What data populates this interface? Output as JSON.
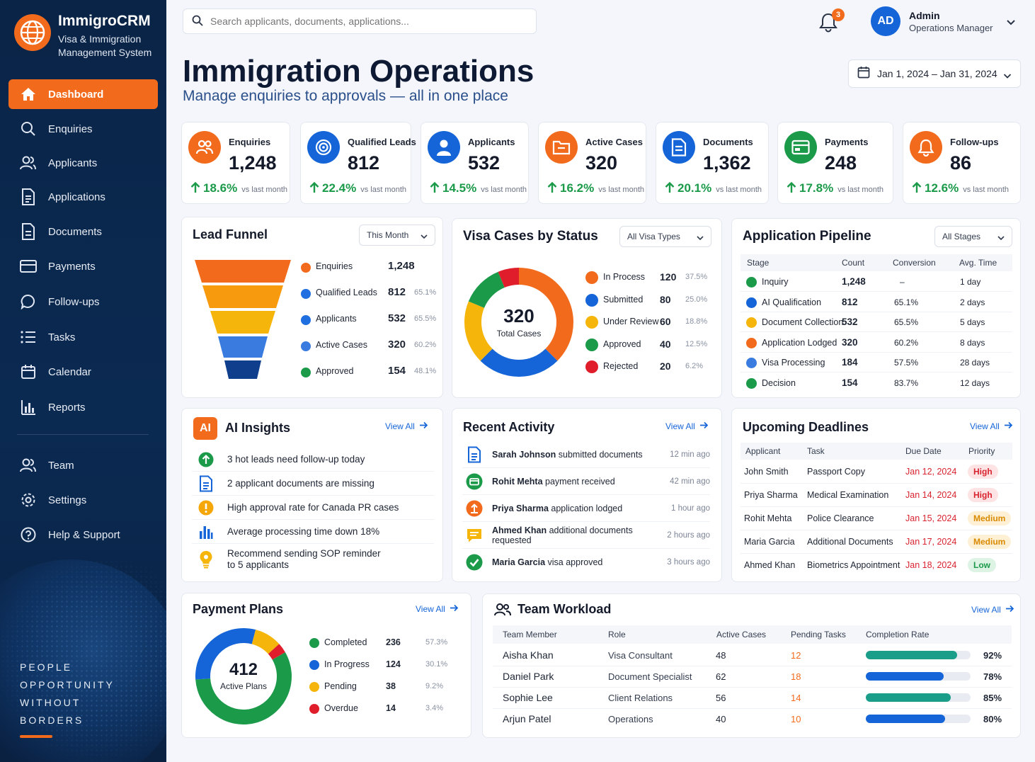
{
  "app": {
    "name": "ImmigroCRM",
    "subtitle": "Visa & Immigration Management System"
  },
  "sidebar": {
    "items": [
      {
        "label": "Dashboard",
        "icon": "home-icon"
      },
      {
        "label": "Enquiries",
        "icon": "search-icon"
      },
      {
        "label": "Applicants",
        "icon": "users-icon"
      },
      {
        "label": "Applications",
        "icon": "document-icon"
      },
      {
        "label": "Documents",
        "icon": "file-icon"
      },
      {
        "label": "Payments",
        "icon": "card-icon"
      },
      {
        "label": "Follow-ups",
        "icon": "chat-icon"
      },
      {
        "label": "Tasks",
        "icon": "list-icon"
      },
      {
        "label": "Calendar",
        "icon": "calendar-icon"
      },
      {
        "label": "Reports",
        "icon": "bar-chart-icon"
      }
    ],
    "bottom_items": [
      {
        "label": "Team",
        "icon": "team-icon"
      },
      {
        "label": "Settings",
        "icon": "gear-icon"
      },
      {
        "label": "Help & Support",
        "icon": "help-icon"
      }
    ],
    "tagline": [
      "PEOPLE",
      "OPPORTUNITY",
      "WITHOUT",
      "BORDERS"
    ]
  },
  "header": {
    "search_placeholder": "Search applicants, documents, applications...",
    "notification_count": "3",
    "user_initials": "AD",
    "user_name": "Admin",
    "user_role": "Operations Manager",
    "date_range": "Jan 1, 2024 – Jan 31, 2024"
  },
  "page": {
    "title": "Immigration Operations",
    "subtitle": "Manage enquiries to approvals — all in one place"
  },
  "kpis": [
    {
      "label": "Enquiries",
      "value": "1,248",
      "change": "18.6%",
      "note": "vs last month",
      "color": "#f26b1d"
    },
    {
      "label": "Qualified Leads",
      "value": "812",
      "change": "22.4%",
      "note": "vs last month",
      "color": "#1565d8"
    },
    {
      "label": "Applicants",
      "value": "532",
      "change": "14.5%",
      "note": "vs last month",
      "color": "#1565d8"
    },
    {
      "label": "Active Cases",
      "value": "320",
      "change": "16.2%",
      "note": "vs last month",
      "color": "#f26b1d"
    },
    {
      "label": "Documents",
      "value": "1,362",
      "change": "20.1%",
      "note": "vs last month",
      "color": "#1565d8"
    },
    {
      "label": "Payments",
      "value": "248",
      "change": "17.8%",
      "note": "vs last month",
      "color": "#1b9a4a"
    },
    {
      "label": "Follow-ups",
      "value": "86",
      "change": "12.6%",
      "note": "vs last month",
      "color": "#f26b1d"
    }
  ],
  "lead_funnel": {
    "title": "Lead Funnel",
    "filter": "This Month",
    "rows": [
      {
        "label": "Enquiries",
        "value": "1,248",
        "pct": "",
        "color": "#f26b1d"
      },
      {
        "label": "Qualified Leads",
        "value": "812",
        "pct": "65.1%",
        "color": "#1f6fe0"
      },
      {
        "label": "Applicants",
        "value": "532",
        "pct": "65.5%",
        "color": "#1f6fe0"
      },
      {
        "label": "Active Cases",
        "value": "320",
        "pct": "60.2%",
        "color": "#3a7be0"
      },
      {
        "label": "Approved",
        "value": "154",
        "pct": "48.1%",
        "color": "#1b9a4a"
      }
    ]
  },
  "visa_status": {
    "title": "Visa Cases by Status",
    "filter": "All Visa Types",
    "total": "320",
    "total_label": "Total Cases",
    "rows": [
      {
        "label": "In Process",
        "value": 120,
        "pct": "37.5%",
        "color": "#f26b1d"
      },
      {
        "label": "Submitted",
        "value": 80,
        "pct": "25.0%",
        "color": "#1565d8"
      },
      {
        "label": "Under Review",
        "value": 60,
        "pct": "18.8%",
        "color": "#f5b50a"
      },
      {
        "label": "Approved",
        "value": 40,
        "pct": "12.5%",
        "color": "#1b9a4a"
      },
      {
        "label": "Rejected",
        "value": 20,
        "pct": "6.2%",
        "color": "#e01e2b"
      }
    ]
  },
  "pipeline": {
    "title": "Application Pipeline",
    "filter": "All Stages",
    "headers": [
      "Stage",
      "Count",
      "Conversion",
      "Avg. Time"
    ],
    "rows": [
      {
        "stage": "Inquiry",
        "count": "1,248",
        "conv": "–",
        "time": "1 day",
        "color": "#1b9a4a"
      },
      {
        "stage": "AI Qualification",
        "count": "812",
        "conv": "65.1%",
        "time": "2 days",
        "color": "#1565d8"
      },
      {
        "stage": "Document Collection",
        "count": "532",
        "conv": "65.5%",
        "time": "5 days",
        "color": "#f5b50a"
      },
      {
        "stage": "Application Lodged",
        "count": "320",
        "conv": "60.2%",
        "time": "8 days",
        "color": "#f26b1d"
      },
      {
        "stage": "Visa Processing",
        "count": "184",
        "conv": "57.5%",
        "time": "28 days",
        "color": "#3a7be0"
      },
      {
        "stage": "Decision",
        "count": "154",
        "conv": "83.7%",
        "time": "12 days",
        "color": "#1b9a4a"
      }
    ]
  },
  "ai_insights": {
    "badge": "AI",
    "title": "AI Insights",
    "view_all": "View All",
    "items": [
      {
        "text": "3 hot leads need follow-up today",
        "icon": "arrow-up-icon"
      },
      {
        "text": "2 applicant documents are missing",
        "icon": "document-icon"
      },
      {
        "text": "High approval rate for Canada PR cases",
        "icon": "warning-icon"
      },
      {
        "text": "Average processing time down 18%",
        "icon": "bar-chart-icon"
      },
      {
        "text": "Recommend sending SOP reminder",
        "text2": "to 5 applicants",
        "icon": "lightbulb-icon"
      }
    ]
  },
  "recent_activity": {
    "title": "Recent Activity",
    "view_all": "View All",
    "items": [
      {
        "name": "Sarah Johnson",
        "action": "submitted documents",
        "time": "12 min ago",
        "icon": "document-icon"
      },
      {
        "name": "Rohit Mehta",
        "action": "payment received",
        "time": "42 min ago",
        "icon": "payment-icon"
      },
      {
        "name": "Priya Sharma",
        "action": "application lodged",
        "time": "1 hour ago",
        "icon": "upload-icon"
      },
      {
        "name": "Ahmed Khan",
        "action": "additional documents requested",
        "time": "2 hours ago",
        "icon": "message-icon"
      },
      {
        "name": "Maria Garcia",
        "action": "visa approved",
        "time": "3 hours ago",
        "icon": "check-icon"
      }
    ]
  },
  "deadlines": {
    "title": "Upcoming Deadlines",
    "view_all": "View All",
    "headers": [
      "Applicant",
      "Task",
      "Due Date",
      "Priority"
    ],
    "rows": [
      {
        "applicant": "John Smith",
        "task": "Passport Copy",
        "date": "Jan 12, 2024",
        "priority": "High"
      },
      {
        "applicant": "Priya Sharma",
        "task": "Medical Examination",
        "date": "Jan 14, 2024",
        "priority": "High"
      },
      {
        "applicant": "Rohit Mehta",
        "task": "Police Clearance",
        "date": "Jan 15, 2024",
        "priority": "Medium"
      },
      {
        "applicant": "Maria Garcia",
        "task": "Additional Documents",
        "date": "Jan 17, 2024",
        "priority": "Medium"
      },
      {
        "applicant": "Ahmed Khan",
        "task": "Biometrics Appointment",
        "date": "Jan 18, 2024",
        "priority": "Low"
      }
    ]
  },
  "payment_plans": {
    "title": "Payment Plans",
    "view_all": "View All",
    "total": "412",
    "total_label": "Active Plans",
    "rows": [
      {
        "label": "Completed",
        "value": 236,
        "pct": "57.3%",
        "color": "#1b9a4a"
      },
      {
        "label": "In Progress",
        "value": 124,
        "pct": "30.1%",
        "color": "#1565d8"
      },
      {
        "label": "Pending",
        "value": 38,
        "pct": "9.2%",
        "color": "#f5b50a"
      },
      {
        "label": "Overdue",
        "value": 14,
        "pct": "3.4%",
        "color": "#e01e2b"
      }
    ]
  },
  "team_workload": {
    "title": "Team Workload",
    "view_all": "View All",
    "headers": [
      "Team Member",
      "Role",
      "Active Cases",
      "Pending Tasks",
      "Completion Rate"
    ],
    "rows": [
      {
        "name": "Aisha Khan",
        "role": "Visa Consultant",
        "active": "48",
        "pending": "12",
        "rate": "92%",
        "fill": 0.92,
        "color": "#1a9e8a"
      },
      {
        "name": "Daniel Park",
        "role": "Document Specialist",
        "active": "62",
        "pending": "18",
        "rate": "78%",
        "fill": 0.78,
        "color": "#1565d8"
      },
      {
        "name": "Sophie Lee",
        "role": "Client Relations",
        "active": "56",
        "pending": "14",
        "rate": "85%",
        "fill": 0.85,
        "color": "#1a9e8a"
      },
      {
        "name": "Arjun Patel",
        "role": "Operations",
        "active": "40",
        "pending": "10",
        "rate": "80%",
        "fill": 0.8,
        "color": "#1565d8"
      }
    ]
  }
}
